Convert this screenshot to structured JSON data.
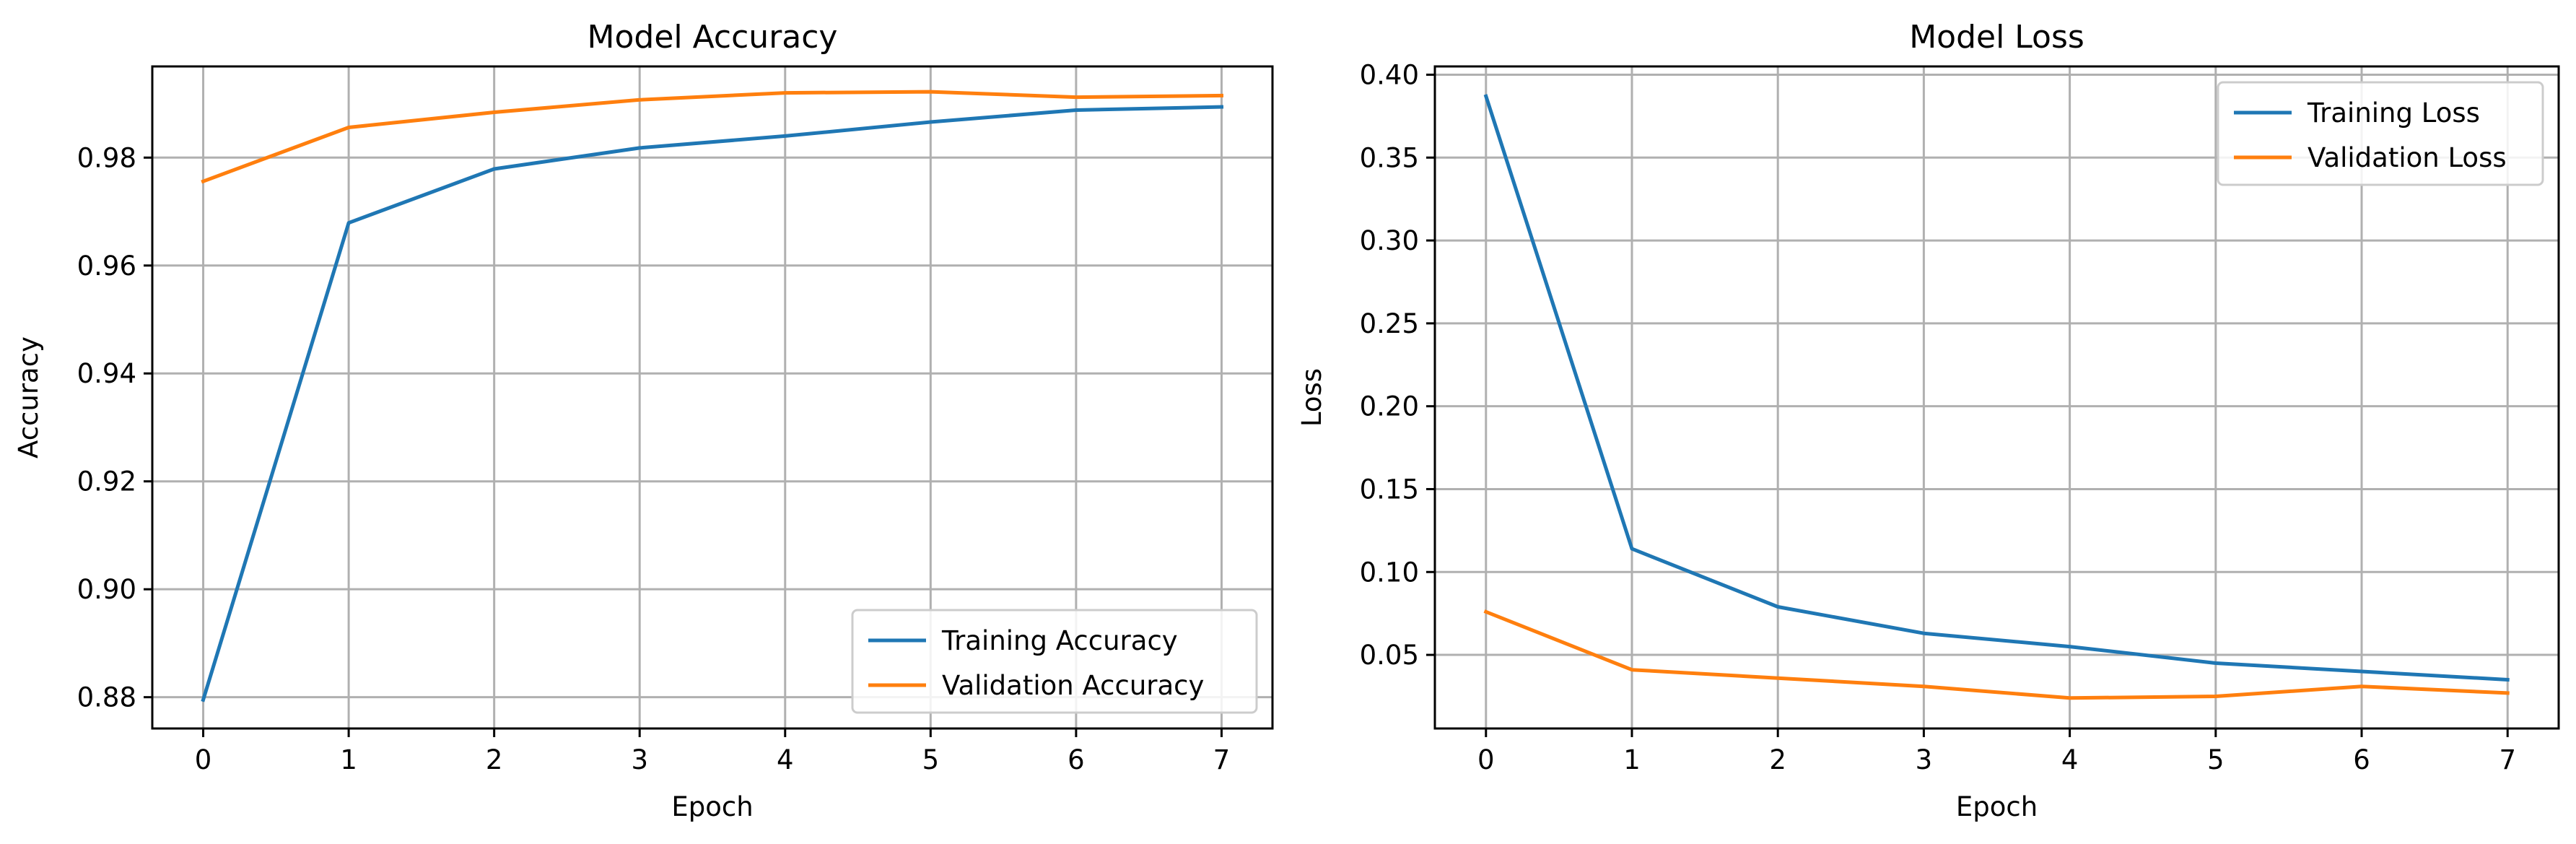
{
  "chart_data": [
    {
      "type": "line",
      "title": "Model Accuracy",
      "xlabel": "Epoch",
      "ylabel": "Accuracy",
      "x": [
        0,
        1,
        2,
        3,
        4,
        5,
        6,
        7
      ],
      "xlim": [
        -0.35,
        7.35
      ],
      "ylim": [
        0.8742,
        0.9969
      ],
      "xticks": [
        0,
        1,
        2,
        3,
        4,
        5,
        6,
        7
      ],
      "yticks": [
        0.88,
        0.9,
        0.92,
        0.94,
        0.96,
        0.98
      ],
      "ytick_labels": [
        "0.88",
        "0.90",
        "0.92",
        "0.94",
        "0.96",
        "0.98"
      ],
      "grid": true,
      "legend_position": "lower-right",
      "series": [
        {
          "name": "Training Accuracy",
          "color": "#1f77b4",
          "values": [
            0.8795,
            0.9679,
            0.9779,
            0.9818,
            0.984,
            0.9866,
            0.9888,
            0.9894
          ]
        },
        {
          "name": "Validation Accuracy",
          "color": "#ff7f0e",
          "values": [
            0.9756,
            0.9856,
            0.9884,
            0.9907,
            0.992,
            0.9922,
            0.9912,
            0.9915
          ]
        }
      ]
    },
    {
      "type": "line",
      "title": "Model Loss",
      "xlabel": "Epoch",
      "ylabel": "Loss",
      "x": [
        0,
        1,
        2,
        3,
        4,
        5,
        6,
        7
      ],
      "xlim": [
        -0.35,
        7.35
      ],
      "ylim": [
        0.0056,
        0.405
      ],
      "xticks": [
        0,
        1,
        2,
        3,
        4,
        5,
        6,
        7
      ],
      "yticks": [
        0.05,
        0.1,
        0.15,
        0.2,
        0.25,
        0.3,
        0.35,
        0.4
      ],
      "ytick_labels": [
        "0.05",
        "0.10",
        "0.15",
        "0.20",
        "0.25",
        "0.30",
        "0.35",
        "0.40"
      ],
      "grid": true,
      "legend_position": "upper-right",
      "series": [
        {
          "name": "Training Loss",
          "color": "#1f77b4",
          "values": [
            0.387,
            0.114,
            0.079,
            0.063,
            0.055,
            0.045,
            0.04,
            0.035
          ]
        },
        {
          "name": "Validation Loss",
          "color": "#ff7f0e",
          "values": [
            0.076,
            0.041,
            0.036,
            0.031,
            0.024,
            0.025,
            0.031,
            0.027
          ]
        }
      ]
    }
  ]
}
